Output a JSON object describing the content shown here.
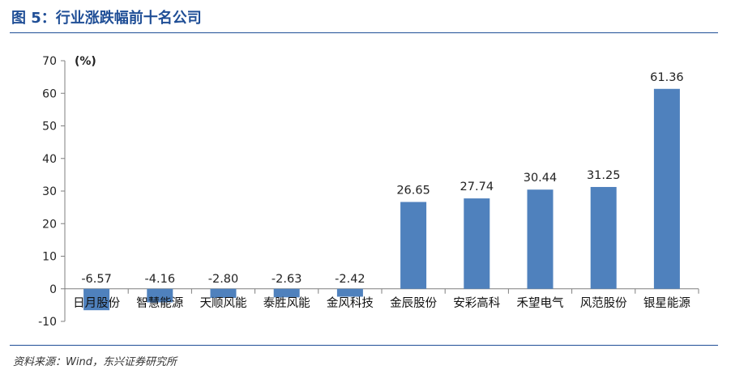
{
  "title": "图 5：行业涨跌幅前十名公司",
  "source": "资料来源：Wind，东兴证券研究所",
  "chart_data": {
    "type": "bar",
    "unit_label": "(%)",
    "categories": [
      "日月股份",
      "智慧能源",
      "天顺风能",
      "泰胜风能",
      "金风科技",
      "金辰股份",
      "安彩高科",
      "禾望电气",
      "风范股份",
      "银星能源"
    ],
    "values": [
      -6.57,
      -4.16,
      -2.8,
      -2.63,
      -2.42,
      26.65,
      27.74,
      30.44,
      31.25,
      61.36
    ],
    "value_labels": [
      "-6.57",
      "-4.16",
      "-2.80",
      "-2.63",
      "-2.42",
      "26.65",
      "27.74",
      "30.44",
      "31.25",
      "61.36"
    ],
    "yticks": [
      "70",
      "60",
      "50",
      "40",
      "30",
      "20",
      "10",
      "0",
      "-10"
    ],
    "ylim": [
      -10,
      70
    ],
    "bar_color": "#4f81bd",
    "grid": false
  }
}
